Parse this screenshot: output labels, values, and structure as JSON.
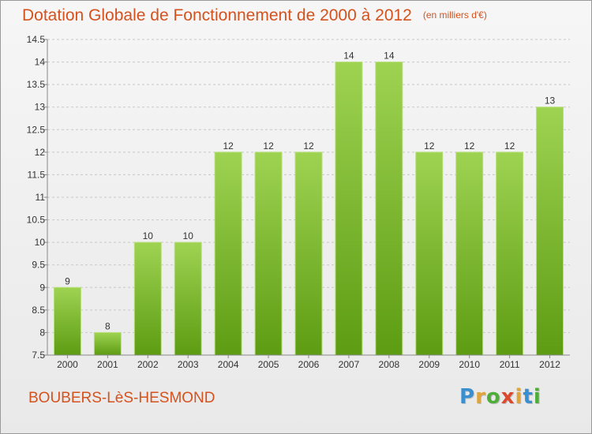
{
  "title": "Dotation Globale de Fonctionnement de 2000 à 2012",
  "title_unit": "(en milliers d'€)",
  "commune": "BOUBERS-LèS-HESMOND",
  "logo": {
    "letters": [
      "P",
      "r",
      "o",
      "x",
      "i",
      "t",
      "i"
    ],
    "colors": [
      "#3a8fd0",
      "#e0a43c",
      "#4fae3a",
      "#d94a2e",
      "#e0a43c",
      "#3a8fd0",
      "#4fae3a"
    ]
  },
  "colors": {
    "bar_top": "#9ed352",
    "bar_bottom": "#5d9c12",
    "title": "#d4521e"
  },
  "chart_data": {
    "type": "bar",
    "title": "Dotation Globale de Fonctionnement de 2000 à 2012",
    "categories": [
      "2000",
      "2001",
      "2002",
      "2003",
      "2004",
      "2005",
      "2006",
      "2007",
      "2008",
      "2009",
      "2010",
      "2011",
      "2012"
    ],
    "values": [
      9,
      8,
      10,
      10,
      12,
      12,
      12,
      14,
      14,
      12,
      12,
      12,
      13
    ],
    "value_labels": [
      "9",
      "8",
      "10",
      "10",
      "12",
      "12",
      "12",
      "14",
      "14",
      "12",
      "12",
      "12",
      "13"
    ],
    "ylim": [
      7.5,
      14.5
    ],
    "yticks": [
      7.5,
      8,
      8.5,
      9,
      9.5,
      10,
      10.5,
      11,
      11.5,
      12,
      12.5,
      13,
      13.5,
      14,
      14.5
    ],
    "ytick_labels": [
      "7.5",
      "8",
      "8.5",
      "9",
      "9.5",
      "10",
      "10.5",
      "11",
      "11.5",
      "12",
      "12.5",
      "13",
      "13.5",
      "14",
      "14.5"
    ],
    "grid": "horizontal dashed",
    "legend": "none"
  }
}
